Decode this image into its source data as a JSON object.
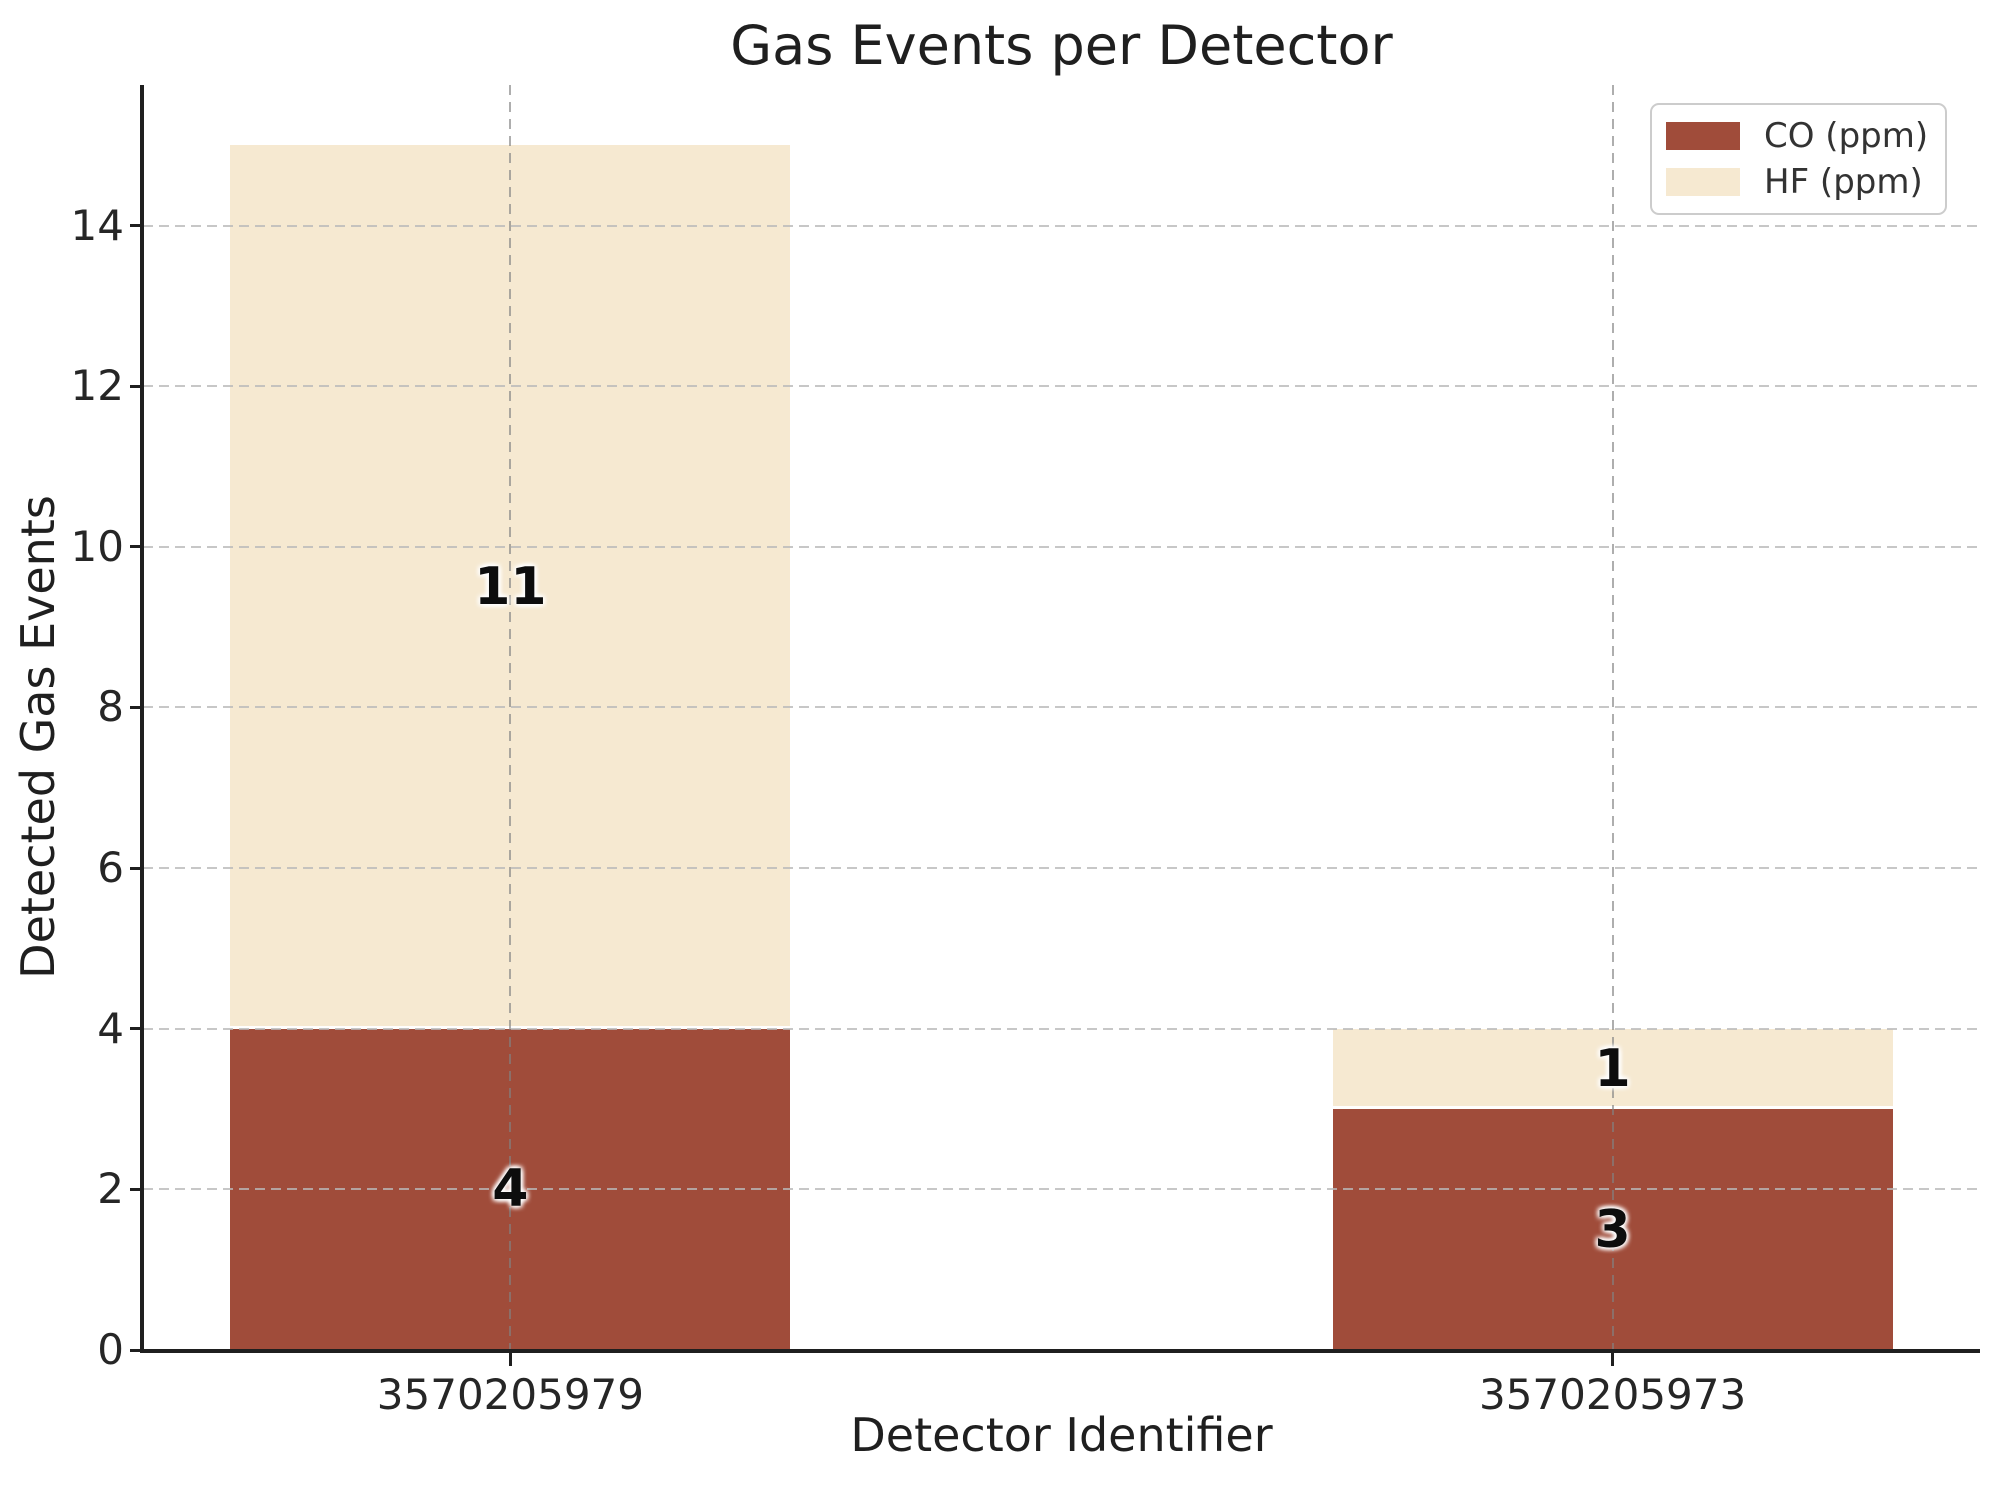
{
  "chart_data": {
    "type": "bar",
    "stacked": true,
    "title": "Gas Events per Detector",
    "xlabel": "Detector Identifier",
    "ylabel": "Detected Gas Events",
    "categories": [
      "3570205979",
      "3570205973"
    ],
    "series": [
      {
        "name": "CO (ppm)",
        "values": [
          4,
          3
        ],
        "color": "#a04c3a"
      },
      {
        "name": "HF (ppm)",
        "values": [
          11,
          1
        ],
        "color": "#f6e9d1"
      }
    ],
    "segment_value_labels": {
      "3570205979": {
        "CO (ppm)": "4",
        "HF (ppm)": "11"
      },
      "3570205973": {
        "CO (ppm)": "3",
        "HF (ppm)": "1"
      }
    },
    "yticks": [
      0,
      2,
      4,
      6,
      8,
      10,
      12,
      14
    ],
    "ylim": [
      0,
      15.75
    ],
    "grid": true,
    "grid_style": "dashed",
    "legend_position": "upper right"
  },
  "colors": {
    "co_bar": "#a04c3a",
    "hf_bar": "#f6e9d1",
    "gridline": "#c8c8c8",
    "spine": "#1f1f1f",
    "text": "#262626",
    "background": "#ffffff"
  }
}
